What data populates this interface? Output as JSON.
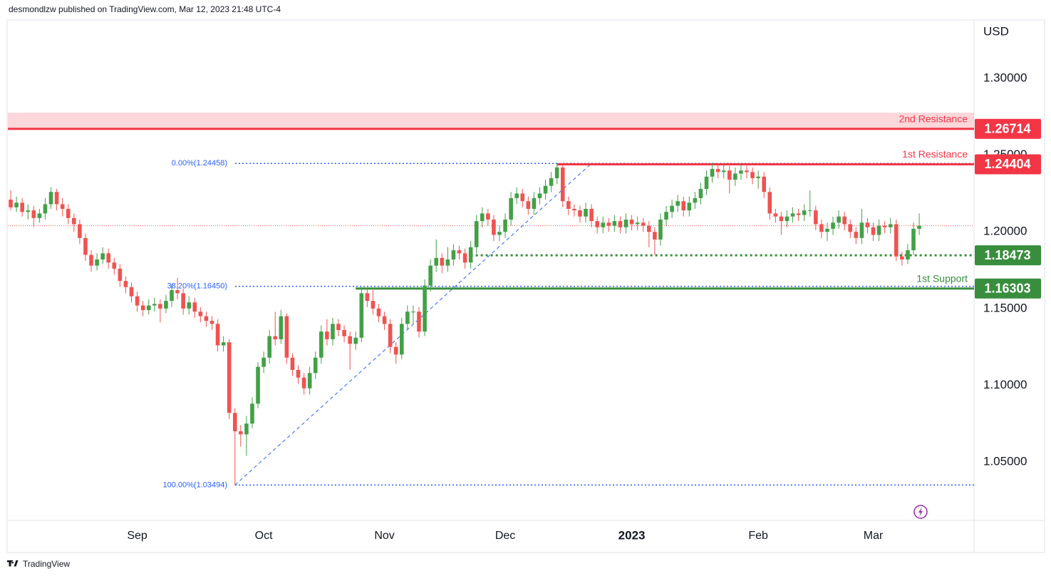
{
  "chart_data": {
    "type": "candlestick",
    "header": "desmondlzw published on TradingView.com, Mar 12, 2023 21:48 UTC-4",
    "currency": "USD",
    "footer": "TradingView",
    "up_color": "#43a047",
    "down_color": "#ef5350",
    "price_line": true,
    "ylim": [
      1.0119,
      1.3372
    ],
    "yticks": [
      {
        "value": 1.05,
        "label": "1.05000"
      },
      {
        "value": 1.1,
        "label": "1.10000"
      },
      {
        "value": 1.15,
        "label": "1.15000"
      },
      {
        "value": 1.2,
        "label": "1.20000"
      },
      {
        "value": 1.25,
        "label": "1.25000"
      },
      {
        "value": 1.3,
        "label": "1.30000"
      }
    ],
    "categories": [
      null,
      null,
      null,
      null,
      null,
      null,
      null,
      null,
      null,
      null,
      null,
      null,
      null,
      null,
      null,
      null,
      null,
      null,
      null,
      null,
      null,
      null,
      "Sep",
      null,
      null,
      null,
      null,
      null,
      null,
      null,
      null,
      null,
      null,
      null,
      null,
      null,
      null,
      null,
      null,
      null,
      null,
      null,
      null,
      null,
      "Oct",
      null,
      null,
      null,
      null,
      null,
      null,
      null,
      null,
      null,
      null,
      null,
      null,
      null,
      null,
      null,
      null,
      null,
      null,
      null,
      null,
      "Nov",
      null,
      null,
      null,
      null,
      null,
      null,
      null,
      null,
      null,
      null,
      null,
      null,
      null,
      null,
      null,
      null,
      null,
      null,
      null,
      null,
      "Dec",
      null,
      null,
      null,
      null,
      null,
      null,
      null,
      null,
      null,
      null,
      null,
      null,
      null,
      null,
      null,
      null,
      null,
      null,
      null,
      null,
      null,
      "2023",
      null,
      null,
      null,
      null,
      null,
      null,
      null,
      null,
      null,
      null,
      null,
      null,
      null,
      null,
      null,
      null,
      null,
      null,
      null,
      null,
      null,
      "Feb",
      null,
      null,
      null,
      null,
      null,
      null,
      null,
      null,
      null,
      null,
      null,
      null,
      null,
      null,
      null,
      null,
      null,
      null,
      null,
      "Mar",
      null,
      null,
      null,
      null,
      null,
      null,
      null,
      null
    ],
    "open": [
      1.221,
      1.216,
      1.219,
      1.213,
      1.214,
      1.209,
      1.212,
      1.218,
      1.226,
      1.218,
      1.215,
      1.209,
      1.205,
      1.196,
      1.185,
      1.178,
      1.182,
      1.186,
      1.18,
      1.176,
      1.168,
      1.164,
      1.158,
      1.152,
      1.149,
      1.152,
      1.153,
      1.15,
      1.155,
      1.162,
      1.16,
      1.15,
      1.154,
      1.148,
      1.145,
      1.142,
      1.14,
      1.126,
      1.128,
      1.082,
      1.07,
      1.068,
      1.075,
      1.088,
      1.112,
      1.118,
      1.132,
      1.13,
      1.145,
      1.118,
      1.11,
      1.105,
      1.098,
      1.108,
      1.118,
      1.135,
      1.13,
      1.14,
      1.136,
      1.132,
      1.127,
      1.131,
      1.16,
      1.155,
      1.15,
      1.145,
      1.14,
      1.125,
      1.12,
      1.14,
      1.148,
      1.148,
      1.135,
      1.165,
      1.178,
      1.183,
      1.178,
      1.182,
      1.188,
      1.186,
      1.18,
      1.19,
      1.207,
      1.212,
      1.208,
      1.198,
      1.2,
      1.208,
      1.222,
      1.225,
      1.22,
      1.215,
      1.222,
      1.225,
      1.23,
      1.235,
      1.242,
      1.22,
      1.215,
      1.214,
      1.21,
      1.215,
      1.207,
      1.203,
      1.206,
      1.204,
      1.207,
      1.203,
      1.208,
      1.205,
      1.206,
      1.204,
      1.2,
      1.195,
      1.208,
      1.213,
      1.217,
      1.22,
      1.214,
      1.219,
      1.222,
      1.228,
      1.236,
      1.241,
      1.239,
      1.24,
      1.234,
      1.238,
      1.24,
      1.239,
      1.235,
      1.236,
      1.226,
      1.212,
      1.21,
      1.207,
      1.21,
      1.212,
      1.211,
      1.214,
      1.214,
      1.205,
      1.2,
      1.202,
      1.206,
      1.21,
      1.205,
      1.2,
      1.196,
      1.206,
      1.203,
      1.198,
      1.204,
      1.203,
      1.205,
      1.184,
      1.182,
      1.188,
      1.202
    ],
    "high": [
      1.227,
      1.223,
      1.222,
      1.218,
      1.217,
      1.215,
      1.222,
      1.229,
      1.228,
      1.222,
      1.218,
      1.212,
      1.208,
      1.199,
      1.188,
      1.186,
      1.19,
      1.189,
      1.183,
      1.179,
      1.171,
      1.167,
      1.161,
      1.155,
      1.156,
      1.157,
      1.156,
      1.159,
      1.166,
      1.17,
      1.163,
      1.158,
      1.157,
      1.151,
      1.148,
      1.145,
      1.143,
      1.132,
      1.13,
      1.085,
      1.074,
      1.08,
      1.092,
      1.115,
      1.122,
      1.136,
      1.148,
      1.149,
      1.147,
      1.121,
      1.113,
      1.108,
      1.112,
      1.122,
      1.139,
      1.143,
      1.144,
      1.143,
      1.139,
      1.135,
      1.135,
      1.164,
      1.163,
      1.162,
      1.153,
      1.148,
      1.143,
      1.128,
      1.144,
      1.152,
      1.152,
      1.151,
      1.169,
      1.182,
      1.195,
      1.186,
      1.19,
      1.192,
      1.191,
      1.189,
      1.194,
      1.211,
      1.216,
      1.215,
      1.211,
      1.204,
      1.212,
      1.226,
      1.229,
      1.228,
      1.223,
      1.226,
      1.229,
      1.234,
      1.239,
      1.2446,
      1.244,
      1.223,
      1.218,
      1.217,
      1.219,
      1.218,
      1.21,
      1.21,
      1.209,
      1.211,
      1.21,
      1.212,
      1.211,
      1.21,
      1.209,
      1.207,
      1.203,
      1.212,
      1.217,
      1.221,
      1.224,
      1.223,
      1.223,
      1.226,
      1.232,
      1.24,
      1.245,
      1.244,
      1.244,
      1.243,
      1.242,
      1.244,
      1.243,
      1.242,
      1.24,
      1.239,
      1.229,
      1.215,
      1.213,
      1.214,
      1.216,
      1.215,
      1.218,
      1.227,
      1.217,
      1.208,
      1.206,
      1.21,
      1.214,
      1.213,
      1.208,
      1.203,
      1.215,
      1.209,
      1.206,
      1.208,
      1.207,
      1.209,
      1.208,
      1.187,
      1.192,
      1.206,
      1.212
    ],
    "low": [
      1.214,
      1.213,
      1.21,
      1.208,
      1.203,
      1.206,
      1.208,
      1.215,
      1.214,
      1.21,
      1.205,
      1.2,
      1.192,
      1.181,
      1.174,
      1.175,
      1.179,
      1.176,
      1.172,
      1.164,
      1.16,
      1.154,
      1.148,
      1.145,
      1.146,
      1.148,
      1.141,
      1.147,
      1.151,
      1.156,
      1.146,
      1.146,
      1.144,
      1.141,
      1.138,
      1.136,
      1.122,
      1.122,
      1.078,
      1.0349,
      1.06,
      1.054,
      1.072,
      1.085,
      1.108,
      1.114,
      1.126,
      1.127,
      1.114,
      1.106,
      1.101,
      1.094,
      1.094,
      1.104,
      1.114,
      1.126,
      1.126,
      1.132,
      1.128,
      1.11,
      1.123,
      1.128,
      1.151,
      1.146,
      1.141,
      1.136,
      1.121,
      1.114,
      1.117,
      1.136,
      1.14,
      1.131,
      1.132,
      1.161,
      1.174,
      1.173,
      1.174,
      1.178,
      1.182,
      1.176,
      1.176,
      1.186,
      1.203,
      1.204,
      1.194,
      1.194,
      1.196,
      1.204,
      1.218,
      1.216,
      1.211,
      1.211,
      1.218,
      1.221,
      1.226,
      1.231,
      1.216,
      1.211,
      1.21,
      1.206,
      1.206,
      1.203,
      1.199,
      1.199,
      1.2,
      1.2,
      1.199,
      1.199,
      1.201,
      1.201,
      1.2,
      1.19,
      1.185,
      1.191,
      1.204,
      1.209,
      1.213,
      1.21,
      1.21,
      1.215,
      1.218,
      1.224,
      1.232,
      1.235,
      1.235,
      1.225,
      1.23,
      1.234,
      1.235,
      1.231,
      1.228,
      1.222,
      1.208,
      1.206,
      1.198,
      1.203,
      1.206,
      1.207,
      1.207,
      1.21,
      1.201,
      1.196,
      1.194,
      1.198,
      1.202,
      1.201,
      1.196,
      1.192,
      1.192,
      1.199,
      1.194,
      1.194,
      1.199,
      1.199,
      1.181,
      1.178,
      1.179,
      1.185,
      1.198
    ],
    "close": [
      1.216,
      1.219,
      1.213,
      1.214,
      1.209,
      1.212,
      1.218,
      1.226,
      1.218,
      1.215,
      1.209,
      1.205,
      1.196,
      1.185,
      1.178,
      1.182,
      1.186,
      1.18,
      1.176,
      1.168,
      1.164,
      1.158,
      1.152,
      1.149,
      1.152,
      1.153,
      1.15,
      1.155,
      1.162,
      1.16,
      1.15,
      1.154,
      1.148,
      1.145,
      1.142,
      1.14,
      1.126,
      1.128,
      1.082,
      1.07,
      1.068,
      1.075,
      1.088,
      1.112,
      1.118,
      1.132,
      1.13,
      1.145,
      1.118,
      1.11,
      1.105,
      1.098,
      1.108,
      1.118,
      1.135,
      1.13,
      1.14,
      1.136,
      1.132,
      1.127,
      1.131,
      1.16,
      1.155,
      1.15,
      1.145,
      1.14,
      1.125,
      1.12,
      1.14,
      1.148,
      1.148,
      1.135,
      1.165,
      1.178,
      1.183,
      1.178,
      1.182,
      1.188,
      1.186,
      1.18,
      1.19,
      1.207,
      1.212,
      1.208,
      1.198,
      1.2,
      1.208,
      1.222,
      1.225,
      1.22,
      1.215,
      1.222,
      1.225,
      1.23,
      1.235,
      1.242,
      1.22,
      1.215,
      1.214,
      1.21,
      1.215,
      1.207,
      1.203,
      1.206,
      1.204,
      1.207,
      1.203,
      1.208,
      1.205,
      1.206,
      1.204,
      1.2,
      1.195,
      1.208,
      1.213,
      1.217,
      1.22,
      1.214,
      1.219,
      1.222,
      1.228,
      1.236,
      1.241,
      1.239,
      1.24,
      1.234,
      1.238,
      1.24,
      1.239,
      1.235,
      1.236,
      1.226,
      1.212,
      1.21,
      1.207,
      1.21,
      1.212,
      1.211,
      1.214,
      1.214,
      1.205,
      1.2,
      1.202,
      1.206,
      1.21,
      1.205,
      1.2,
      1.196,
      1.206,
      1.203,
      1.198,
      1.204,
      1.203,
      1.205,
      1.184,
      1.182,
      1.188,
      1.202,
      1.204
    ],
    "levels": [
      {
        "name": "2nd Resistance",
        "value": 1.26714,
        "zone_top": 1.2777,
        "color": "#f23645"
      },
      {
        "name": "1st Resistance",
        "value": 1.24404,
        "color": "#f23645"
      },
      {
        "value": 1.18473,
        "color": "#388e3c",
        "dotted": true
      },
      {
        "name": "1st Support",
        "value": 1.16303,
        "color": "#388e3c"
      }
    ],
    "fib": {
      "color": "#2962ff",
      "levels": [
        {
          "value": 1.24458,
          "label": "0.00%(1.24458)"
        },
        {
          "value": 1.1645,
          "label": "38.20%(1.16450)"
        },
        {
          "value": 1.03494,
          "label": "100.00%(1.03494)"
        }
      ]
    }
  }
}
